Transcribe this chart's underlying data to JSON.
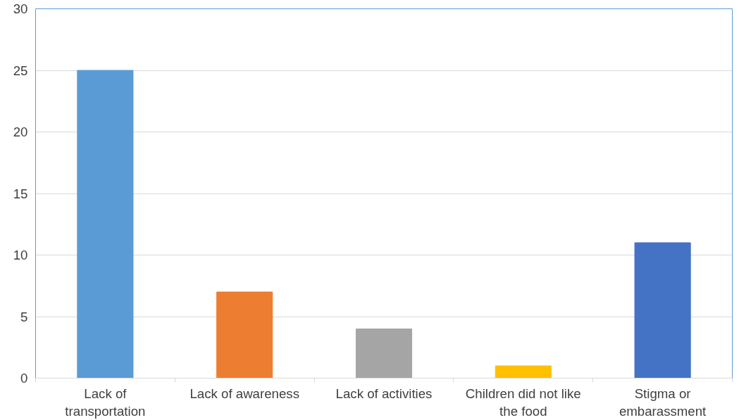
{
  "chart_data": {
    "type": "bar",
    "categories": [
      "Lack of\ntransportation",
      "Lack of awareness",
      "Lack of activities",
      "Children did not like\nthe food",
      "Stigma or\nembarassment"
    ],
    "values": [
      25,
      7,
      4,
      1,
      11
    ],
    "colors": [
      "#5b9bd5",
      "#ed7d31",
      "#a5a5a5",
      "#ffc000",
      "#4472c4"
    ],
    "ylim": [
      0,
      30
    ],
    "yticks": [
      0,
      5,
      10,
      15,
      20,
      25,
      30
    ],
    "grid": "y"
  }
}
